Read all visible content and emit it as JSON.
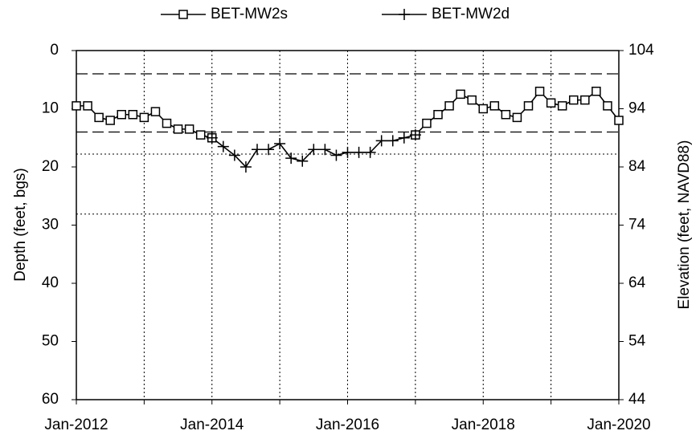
{
  "chart_data": {
    "type": "line",
    "y_label": "Depth (feet, bgs)",
    "y2_label": "Elevation (feet, NAVD88)",
    "legend": "top",
    "grid": true,
    "x": [
      "2012-01",
      "2012-03",
      "2012-05",
      "2012-07",
      "2012-09",
      "2012-11",
      "2013-01",
      "2013-03",
      "2013-05",
      "2013-07",
      "2013-09",
      "2013-11",
      "2014-01",
      "2014-03",
      "2014-05",
      "2014-07",
      "2014-09",
      "2014-11",
      "2015-01",
      "2015-03",
      "2015-05",
      "2015-07",
      "2015-09",
      "2015-11",
      "2016-01",
      "2016-03",
      "2016-05",
      "2016-07",
      "2016-09",
      "2016-11",
      "2017-01",
      "2017-03",
      "2017-05",
      "2017-07",
      "2017-09",
      "2017-11",
      "2018-01",
      "2018-03",
      "2018-05",
      "2018-07",
      "2018-09",
      "2018-11",
      "2019-01",
      "2019-03",
      "2019-05",
      "2019-07",
      "2019-09",
      "2019-11",
      "2020-01"
    ],
    "series": [
      {
        "name": "BET-MW2s",
        "color": "#000000",
        "marker": "square",
        "values": [
          9.5,
          9.5,
          11.5,
          12,
          11,
          11,
          11.5,
          10.5,
          12.5,
          13.5,
          13.5,
          14.5,
          15,
          null,
          null,
          null,
          null,
          null,
          null,
          null,
          null,
          null,
          null,
          null,
          null,
          null,
          null,
          null,
          null,
          null,
          14.5,
          12.5,
          11,
          9.5,
          7.5,
          8.5,
          10,
          9.5,
          11,
          11.5,
          9.5,
          7,
          9,
          9.5,
          8.5,
          8.5,
          7,
          9.5,
          12
        ]
      },
      {
        "name": "BET-MW2d",
        "color": "#000000",
        "marker": "plus",
        "values": [
          null,
          null,
          null,
          null,
          null,
          null,
          null,
          null,
          null,
          null,
          null,
          null,
          15,
          16.5,
          18,
          20,
          17,
          17,
          16,
          18.5,
          19,
          17,
          17,
          18,
          17.5,
          17.5,
          17.5,
          15.5,
          15.5,
          15,
          14.5,
          null,
          null,
          null,
          null,
          null,
          null,
          null,
          null,
          null,
          null,
          null,
          null,
          null,
          null,
          null,
          null,
          null,
          null
        ]
      }
    ],
    "xlim": [
      "2012-01",
      "2020-01"
    ],
    "xticks": [
      {
        "value": "2012-01",
        "label": "Jan-2012"
      },
      {
        "value": "2013-01",
        "label": null
      },
      {
        "value": "2014-01",
        "label": "Jan-2014"
      },
      {
        "value": "2015-01",
        "label": null
      },
      {
        "value": "2016-01",
        "label": "Jan-2016"
      },
      {
        "value": "2017-01",
        "label": null
      },
      {
        "value": "2018-01",
        "label": "Jan-2018"
      },
      {
        "value": "2019-01",
        "label": null
      },
      {
        "value": "2020-01",
        "label": "Jan-2020"
      }
    ],
    "ylim": [
      60,
      0
    ],
    "yticks": [
      0,
      10,
      20,
      30,
      40,
      50,
      60
    ],
    "y2lim": [
      44,
      104
    ],
    "y2ticks": [
      104,
      94,
      84,
      74,
      64,
      54,
      44
    ],
    "dashed_lines": [
      4,
      14
    ],
    "dotted_lines": [
      17.8,
      28.1
    ]
  }
}
